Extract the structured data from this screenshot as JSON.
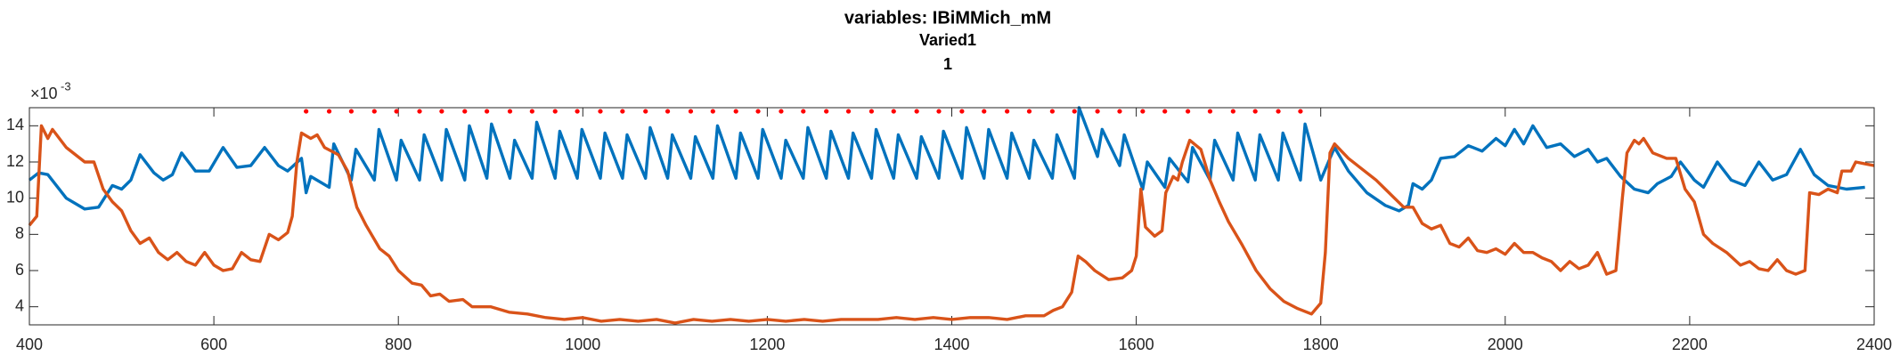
{
  "chart_data": {
    "type": "line",
    "title": "variables: IBiMMich_mM",
    "subtitle": "Varied1",
    "subtitle2": "1",
    "y_exponent": {
      "base": "×10",
      "power": "-3"
    },
    "xlim": [
      400,
      2400
    ],
    "xticks": [
      400,
      600,
      800,
      1000,
      1200,
      1400,
      1600,
      1800,
      2000,
      2200,
      2400
    ],
    "ylim": [
      3,
      15
    ],
    "yticks": [
      4,
      6,
      8,
      10,
      12,
      14
    ],
    "series": [
      {
        "color": "#0072BD",
        "style": "line",
        "x": [
          400,
          410,
          420,
          440,
          460,
          475,
          490,
          500,
          510,
          520,
          535,
          545,
          555,
          565,
          580,
          595,
          610,
          625,
          640,
          655,
          670,
          680,
          695,
          700,
          705,
          725,
          730,
          749,
          754,
          774,
          779,
          798,
          803,
          823,
          828,
          847,
          852,
          872,
          877,
          896,
          901,
          921,
          926,
          945,
          950,
          970,
          975,
          994,
          999,
          1019,
          1024,
          1043,
          1048,
          1068,
          1073,
          1092,
          1097,
          1117,
          1122,
          1141,
          1146,
          1166,
          1171,
          1190,
          1195,
          1215,
          1220,
          1239,
          1244,
          1264,
          1269,
          1288,
          1293,
          1313,
          1318,
          1337,
          1342,
          1362,
          1367,
          1386,
          1391,
          1411,
          1416,
          1435,
          1440,
          1460,
          1465,
          1484,
          1489,
          1509,
          1514,
          1533,
          1538,
          1558,
          1563,
          1582,
          1587,
          1607,
          1612,
          1631,
          1636,
          1656,
          1661,
          1680,
          1685,
          1705,
          1710,
          1729,
          1734,
          1754,
          1759,
          1778,
          1783,
          1800,
          1815,
          1830,
          1850,
          1870,
          1885,
          1895,
          1900,
          1910,
          1920,
          1930,
          1945,
          1960,
          1975,
          1990,
          2000,
          2010,
          2020,
          2030,
          2045,
          2060,
          2075,
          2090,
          2100,
          2110,
          2125,
          2140,
          2155,
          2165,
          2180,
          2190,
          2205,
          2215,
          2230,
          2245,
          2260,
          2275,
          2290,
          2305,
          2320,
          2335,
          2350,
          2370,
          2390
        ],
        "values": [
          11.0,
          11.4,
          11.3,
          10.0,
          9.4,
          9.5,
          10.7,
          10.5,
          11.0,
          12.4,
          11.4,
          11.0,
          11.3,
          12.5,
          11.5,
          11.5,
          12.8,
          11.7,
          11.8,
          12.8,
          11.8,
          11.5,
          12.2,
          10.3,
          11.2,
          10.6,
          13.0,
          11.0,
          12.7,
          11.0,
          13.8,
          11.0,
          13.2,
          11.0,
          13.5,
          11.0,
          13.8,
          11.0,
          14.0,
          11.1,
          14.1,
          11.1,
          13.2,
          11.1,
          14.2,
          11.1,
          13.7,
          11.1,
          13.8,
          11.1,
          13.6,
          11.1,
          13.5,
          11.1,
          13.9,
          11.1,
          13.5,
          11.1,
          13.4,
          11.1,
          14.0,
          11.1,
          13.6,
          11.1,
          13.8,
          11.1,
          13.2,
          11.1,
          13.9,
          11.1,
          13.7,
          11.1,
          13.6,
          11.1,
          13.8,
          11.1,
          13.5,
          11.1,
          13.4,
          11.1,
          13.7,
          11.1,
          13.9,
          11.1,
          13.8,
          11.1,
          13.6,
          11.1,
          13.2,
          11.1,
          13.5,
          11.1,
          15.0,
          12.3,
          13.8,
          11.8,
          13.5,
          10.5,
          12.0,
          10.6,
          12.2,
          10.9,
          12.8,
          11.0,
          13.2,
          11.0,
          13.6,
          11.0,
          13.5,
          11.0,
          13.6,
          11.0,
          14.1,
          11.0,
          12.8,
          11.5,
          10.3,
          9.6,
          9.3,
          9.6,
          10.8,
          10.5,
          11.0,
          12.2,
          12.3,
          12.9,
          12.6,
          13.3,
          12.9,
          13.8,
          13.0,
          14.0,
          12.8,
          13.0,
          12.3,
          12.7,
          12.0,
          12.2,
          11.2,
          10.5,
          10.3,
          10.8,
          11.2,
          12.0,
          11.0,
          10.6,
          12.0,
          11.0,
          10.7,
          12.0,
          11.0,
          11.3,
          12.7,
          11.3,
          10.7,
          10.5,
          10.6
        ]
      },
      {
        "color": "#D95319",
        "style": "line",
        "x": [
          400,
          408,
          413,
          420,
          425,
          440,
          460,
          470,
          480,
          490,
          500,
          510,
          520,
          530,
          540,
          550,
          560,
          570,
          580,
          590,
          600,
          610,
          620,
          630,
          640,
          650,
          660,
          670,
          680,
          685,
          690,
          695,
          705,
          712,
          720,
          735,
          745,
          755,
          765,
          780,
          790,
          800,
          815,
          825,
          835,
          845,
          855,
          870,
          880,
          900,
          920,
          940,
          960,
          980,
          1000,
          1020,
          1040,
          1060,
          1080,
          1100,
          1120,
          1140,
          1160,
          1180,
          1200,
          1220,
          1240,
          1260,
          1280,
          1300,
          1320,
          1340,
          1360,
          1380,
          1400,
          1420,
          1440,
          1460,
          1480,
          1500,
          1510,
          1520,
          1530,
          1537,
          1545,
          1555,
          1570,
          1585,
          1595,
          1600,
          1605,
          1610,
          1620,
          1628,
          1632,
          1640,
          1645,
          1650,
          1658,
          1670,
          1680,
          1690,
          1700,
          1715,
          1730,
          1745,
          1760,
          1775,
          1790,
          1800,
          1805,
          1810,
          1815,
          1830,
          1850,
          1860,
          1870,
          1880,
          1890,
          1900,
          1910,
          1920,
          1930,
          1940,
          1950,
          1960,
          1970,
          1980,
          1990,
          2000,
          2010,
          2020,
          2030,
          2040,
          2050,
          2060,
          2070,
          2080,
          2090,
          2100,
          2110,
          2120,
          2127,
          2132,
          2140,
          2145,
          2150,
          2160,
          2175,
          2185,
          2195,
          2205,
          2215,
          2225,
          2240,
          2255,
          2265,
          2275,
          2285,
          2295,
          2305,
          2315,
          2325,
          2330,
          2340,
          2350,
          2360,
          2365,
          2375,
          2380,
          2390,
          2400
        ],
        "values": [
          8.5,
          9.0,
          14.0,
          13.3,
          13.8,
          12.8,
          12.0,
          12.0,
          10.5,
          9.8,
          9.3,
          8.2,
          7.5,
          7.8,
          7.0,
          6.6,
          7.0,
          6.5,
          6.3,
          7.0,
          6.3,
          6.0,
          6.1,
          7.0,
          6.6,
          6.5,
          8.0,
          7.7,
          8.1,
          9.0,
          12.0,
          13.6,
          13.3,
          13.5,
          12.8,
          12.4,
          11.5,
          9.5,
          8.5,
          7.2,
          6.8,
          6.0,
          5.3,
          5.2,
          4.6,
          4.7,
          4.3,
          4.4,
          4.0,
          4.0,
          3.7,
          3.6,
          3.4,
          3.3,
          3.4,
          3.2,
          3.3,
          3.2,
          3.3,
          3.1,
          3.3,
          3.2,
          3.3,
          3.2,
          3.3,
          3.2,
          3.3,
          3.2,
          3.3,
          3.3,
          3.3,
          3.4,
          3.3,
          3.4,
          3.3,
          3.4,
          3.4,
          3.3,
          3.5,
          3.5,
          3.8,
          4.0,
          4.8,
          6.8,
          6.5,
          6.0,
          5.5,
          5.6,
          6.0,
          6.8,
          10.5,
          8.4,
          7.9,
          8.2,
          10.3,
          11.2,
          11.0,
          12.0,
          13.2,
          12.7,
          11.0,
          9.8,
          8.7,
          7.4,
          6.0,
          5.0,
          4.3,
          3.9,
          3.6,
          4.2,
          7.0,
          12.5,
          13.0,
          12.2,
          11.4,
          11.0,
          10.5,
          10.0,
          9.5,
          9.5,
          8.6,
          8.3,
          8.5,
          7.5,
          7.3,
          7.8,
          7.1,
          7.0,
          7.2,
          6.9,
          7.5,
          7.0,
          7.0,
          6.7,
          6.5,
          6.0,
          6.5,
          6.1,
          6.3,
          7.0,
          5.8,
          6.0,
          10.0,
          12.5,
          13.2,
          13.0,
          13.3,
          12.5,
          12.2,
          12.2,
          10.5,
          9.8,
          8.0,
          7.5,
          7.0,
          6.3,
          6.5,
          6.1,
          6.0,
          6.6,
          6.0,
          5.8,
          6.0,
          10.3,
          10.2,
          10.5,
          10.3,
          11.5,
          11.5,
          12.0,
          11.9,
          11.8
        ]
      },
      {
        "color": "#FF0000",
        "style": "dots",
        "x": [
          700,
          725,
          749,
          774,
          798,
          823,
          847,
          872,
          896,
          921,
          945,
          970,
          994,
          1019,
          1043,
          1068,
          1092,
          1117,
          1141,
          1166,
          1190,
          1215,
          1239,
          1264,
          1288,
          1313,
          1337,
          1362,
          1386,
          1411,
          1435,
          1460,
          1484,
          1509,
          1533,
          1558,
          1582,
          1607,
          1631,
          1656,
          1680,
          1705,
          1729,
          1754,
          1778
        ],
        "values": [
          14.8,
          14.8,
          14.8,
          14.8,
          14.8,
          14.8,
          14.8,
          14.8,
          14.8,
          14.8,
          14.8,
          14.8,
          14.8,
          14.8,
          14.8,
          14.8,
          14.8,
          14.8,
          14.8,
          14.8,
          14.8,
          14.8,
          14.8,
          14.8,
          14.8,
          14.8,
          14.8,
          14.8,
          14.8,
          14.8,
          14.8,
          14.8,
          14.8,
          14.8,
          14.8,
          14.8,
          14.8,
          14.8,
          14.8,
          14.8,
          14.8,
          14.8,
          14.8,
          14.8,
          14.8
        ]
      }
    ]
  }
}
